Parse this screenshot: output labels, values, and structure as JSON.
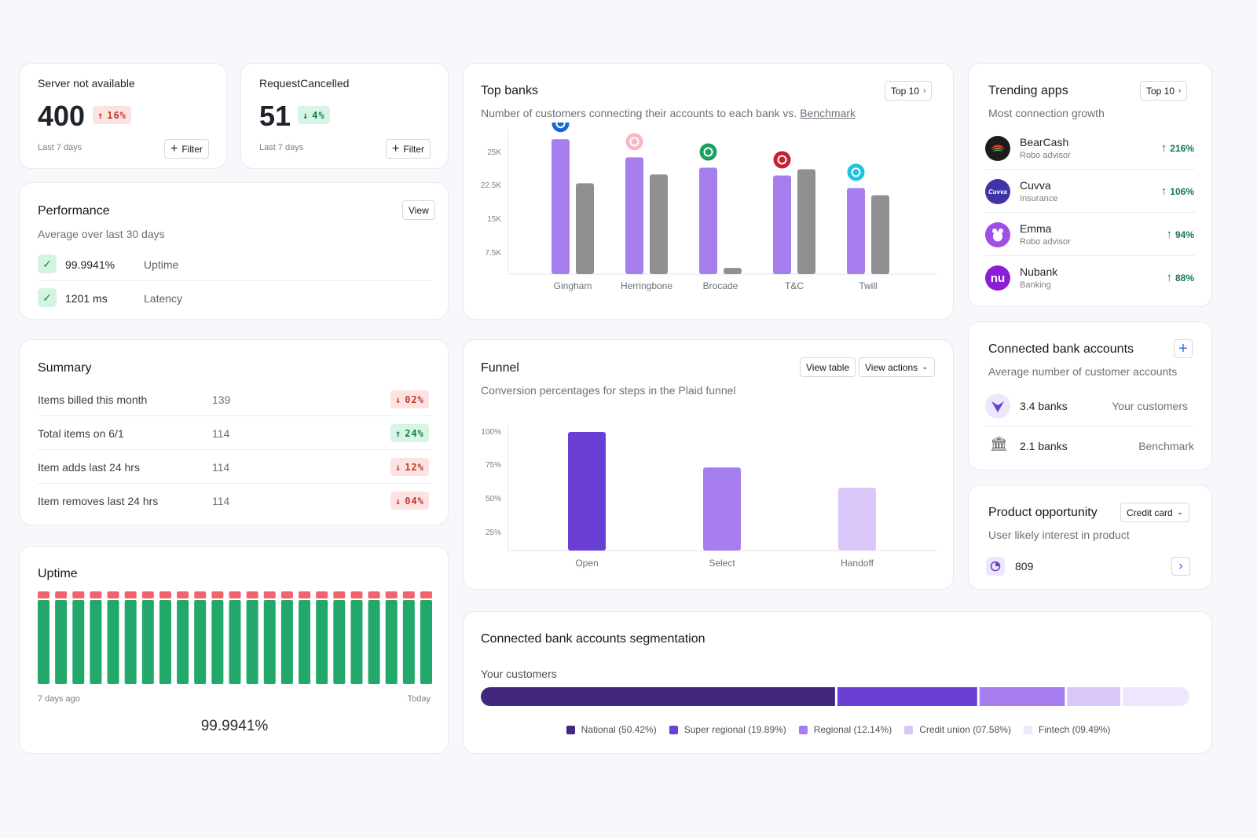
{
  "stat1": {
    "label": "Server not available",
    "value": "400",
    "delta": "16%",
    "period": "Last 7 days",
    "filter": "Filter"
  },
  "stat2": {
    "label": "RequestCancelled",
    "value": "51",
    "delta": "4%",
    "period": "Last 7 days",
    "filter": "Filter"
  },
  "performance": {
    "title": "Performance",
    "subtitle": "Average over last 30 days",
    "view": "View",
    "rows": [
      {
        "value": "99.9941%",
        "label": "Uptime"
      },
      {
        "value": "1201 ms",
        "label": "Latency"
      }
    ]
  },
  "summary": {
    "title": "Summary",
    "rows": [
      {
        "label": "Items billed this month",
        "value": "139",
        "delta": "02%",
        "dir": "down"
      },
      {
        "label": "Total items on 6/1",
        "value": "114",
        "delta": "24%",
        "dir": "up"
      },
      {
        "label": "Item adds last 24 hrs",
        "value": "114",
        "delta": "12%",
        "dir": "down"
      },
      {
        "label": "Item removes last 24 hrs",
        "value": "114",
        "delta": "04%",
        "dir": "down"
      }
    ]
  },
  "uptime": {
    "title": "Uptime",
    "start": "7 days ago",
    "end": "Today",
    "value": "99.9941%",
    "bar_count": 23
  },
  "top_banks": {
    "title": "Top banks",
    "button": "Top 10",
    "subtitle_prefix": "Number of customers connecting their accounts to each bank vs. ",
    "subtitle_link": "Benchmark"
  },
  "funnel": {
    "title": "Funnel",
    "subtitle": "Conversion percentages for steps in the Plaid funnel",
    "view_table": "View table",
    "view_actions": "View actions"
  },
  "segmentation": {
    "title": "Connected bank accounts segmentation",
    "group": "Your customers"
  },
  "trending": {
    "title": "Trending apps",
    "subtitle": "Most connection growth",
    "button": "Top 10",
    "apps": [
      {
        "name": "BearCash",
        "category": "Robo advisor",
        "growth": "216%",
        "color": "#1c1c1c",
        "icon": "bearcash-logo"
      },
      {
        "name": "Cuvva",
        "category": "Insurance",
        "growth": "106%",
        "color": "#3d34a8",
        "icon": "cuvva-logo",
        "mark": "Cuvva"
      },
      {
        "name": "Emma",
        "category": "Robo advisor",
        "growth": "94%",
        "color": "#a14ee8",
        "icon": "emma-logo"
      },
      {
        "name": "Nubank",
        "category": "Banking",
        "growth": "88%",
        "color": "#8a1ed6",
        "icon": "nubank-logo",
        "mark": "nu"
      }
    ]
  },
  "connected": {
    "title": "Connected bank accounts",
    "subtitle": "Average number of customer accounts",
    "rows": [
      {
        "value": "3.4 banks",
        "label": "Your customers"
      },
      {
        "value": "2.1 banks",
        "label": "Benchmark"
      }
    ]
  },
  "product": {
    "title": "Product opportunity",
    "subtitle": "User likely interest in product",
    "select": "Credit card",
    "value": "809"
  },
  "colors": {
    "primary": "#a67ef0",
    "benchmark": "#8f8f8f",
    "green": "#22a86a",
    "red": "#f0646b"
  },
  "chart_data": [
    {
      "type": "bar",
      "title": "Top banks",
      "categories": [
        "Gingham",
        "Herringbone",
        "Brocade",
        "T&C",
        "Twill"
      ],
      "series": [
        {
          "values": [
            26000,
            22500,
            20500,
            19000,
            16600
          ],
          "color": "#a67ef0"
        },
        {
          "values": [
            17500,
            19200,
            1200,
            20200,
            15200
          ],
          "color": "#8f8f8f"
        }
      ],
      "yticks": [
        "7.5K",
        "15K",
        "22.5K",
        "25K"
      ],
      "ylim": [
        0,
        28000
      ],
      "bank_icon_colors": [
        "#1a66d6",
        "#f6b8c5",
        "#1e9e63",
        "#c8202e",
        "#21c1e0"
      ],
      "grid": false
    },
    {
      "type": "bar",
      "title": "Funnel",
      "categories": [
        "Open",
        "Select",
        "Handoff"
      ],
      "values": [
        100,
        70,
        53
      ],
      "colors": [
        "#6a3fd3",
        "#a67ef0",
        "#d8c7f8"
      ],
      "yticks": [
        "25%",
        "50%",
        "75%",
        "100%"
      ],
      "ylim": [
        0,
        100
      ]
    },
    {
      "type": "bar",
      "title": "Connected bank accounts segmentation",
      "orientation": "stacked-horizontal",
      "categories": [
        "National (50.42%)",
        "Super regional (19.89%)",
        "Regional (12.14%)",
        "Credit union (07.58%)",
        "Fintech (09.49%)"
      ],
      "values": [
        50.42,
        19.89,
        12.14,
        7.58,
        9.49
      ],
      "colors": [
        "#41287c",
        "#6a3fd3",
        "#a67ef0",
        "#d8c7f8",
        "#eee6fc"
      ]
    },
    {
      "type": "bar",
      "title": "Uptime",
      "bars": 23,
      "colors": [
        "#22a86a",
        "#f0646b"
      ]
    }
  ]
}
